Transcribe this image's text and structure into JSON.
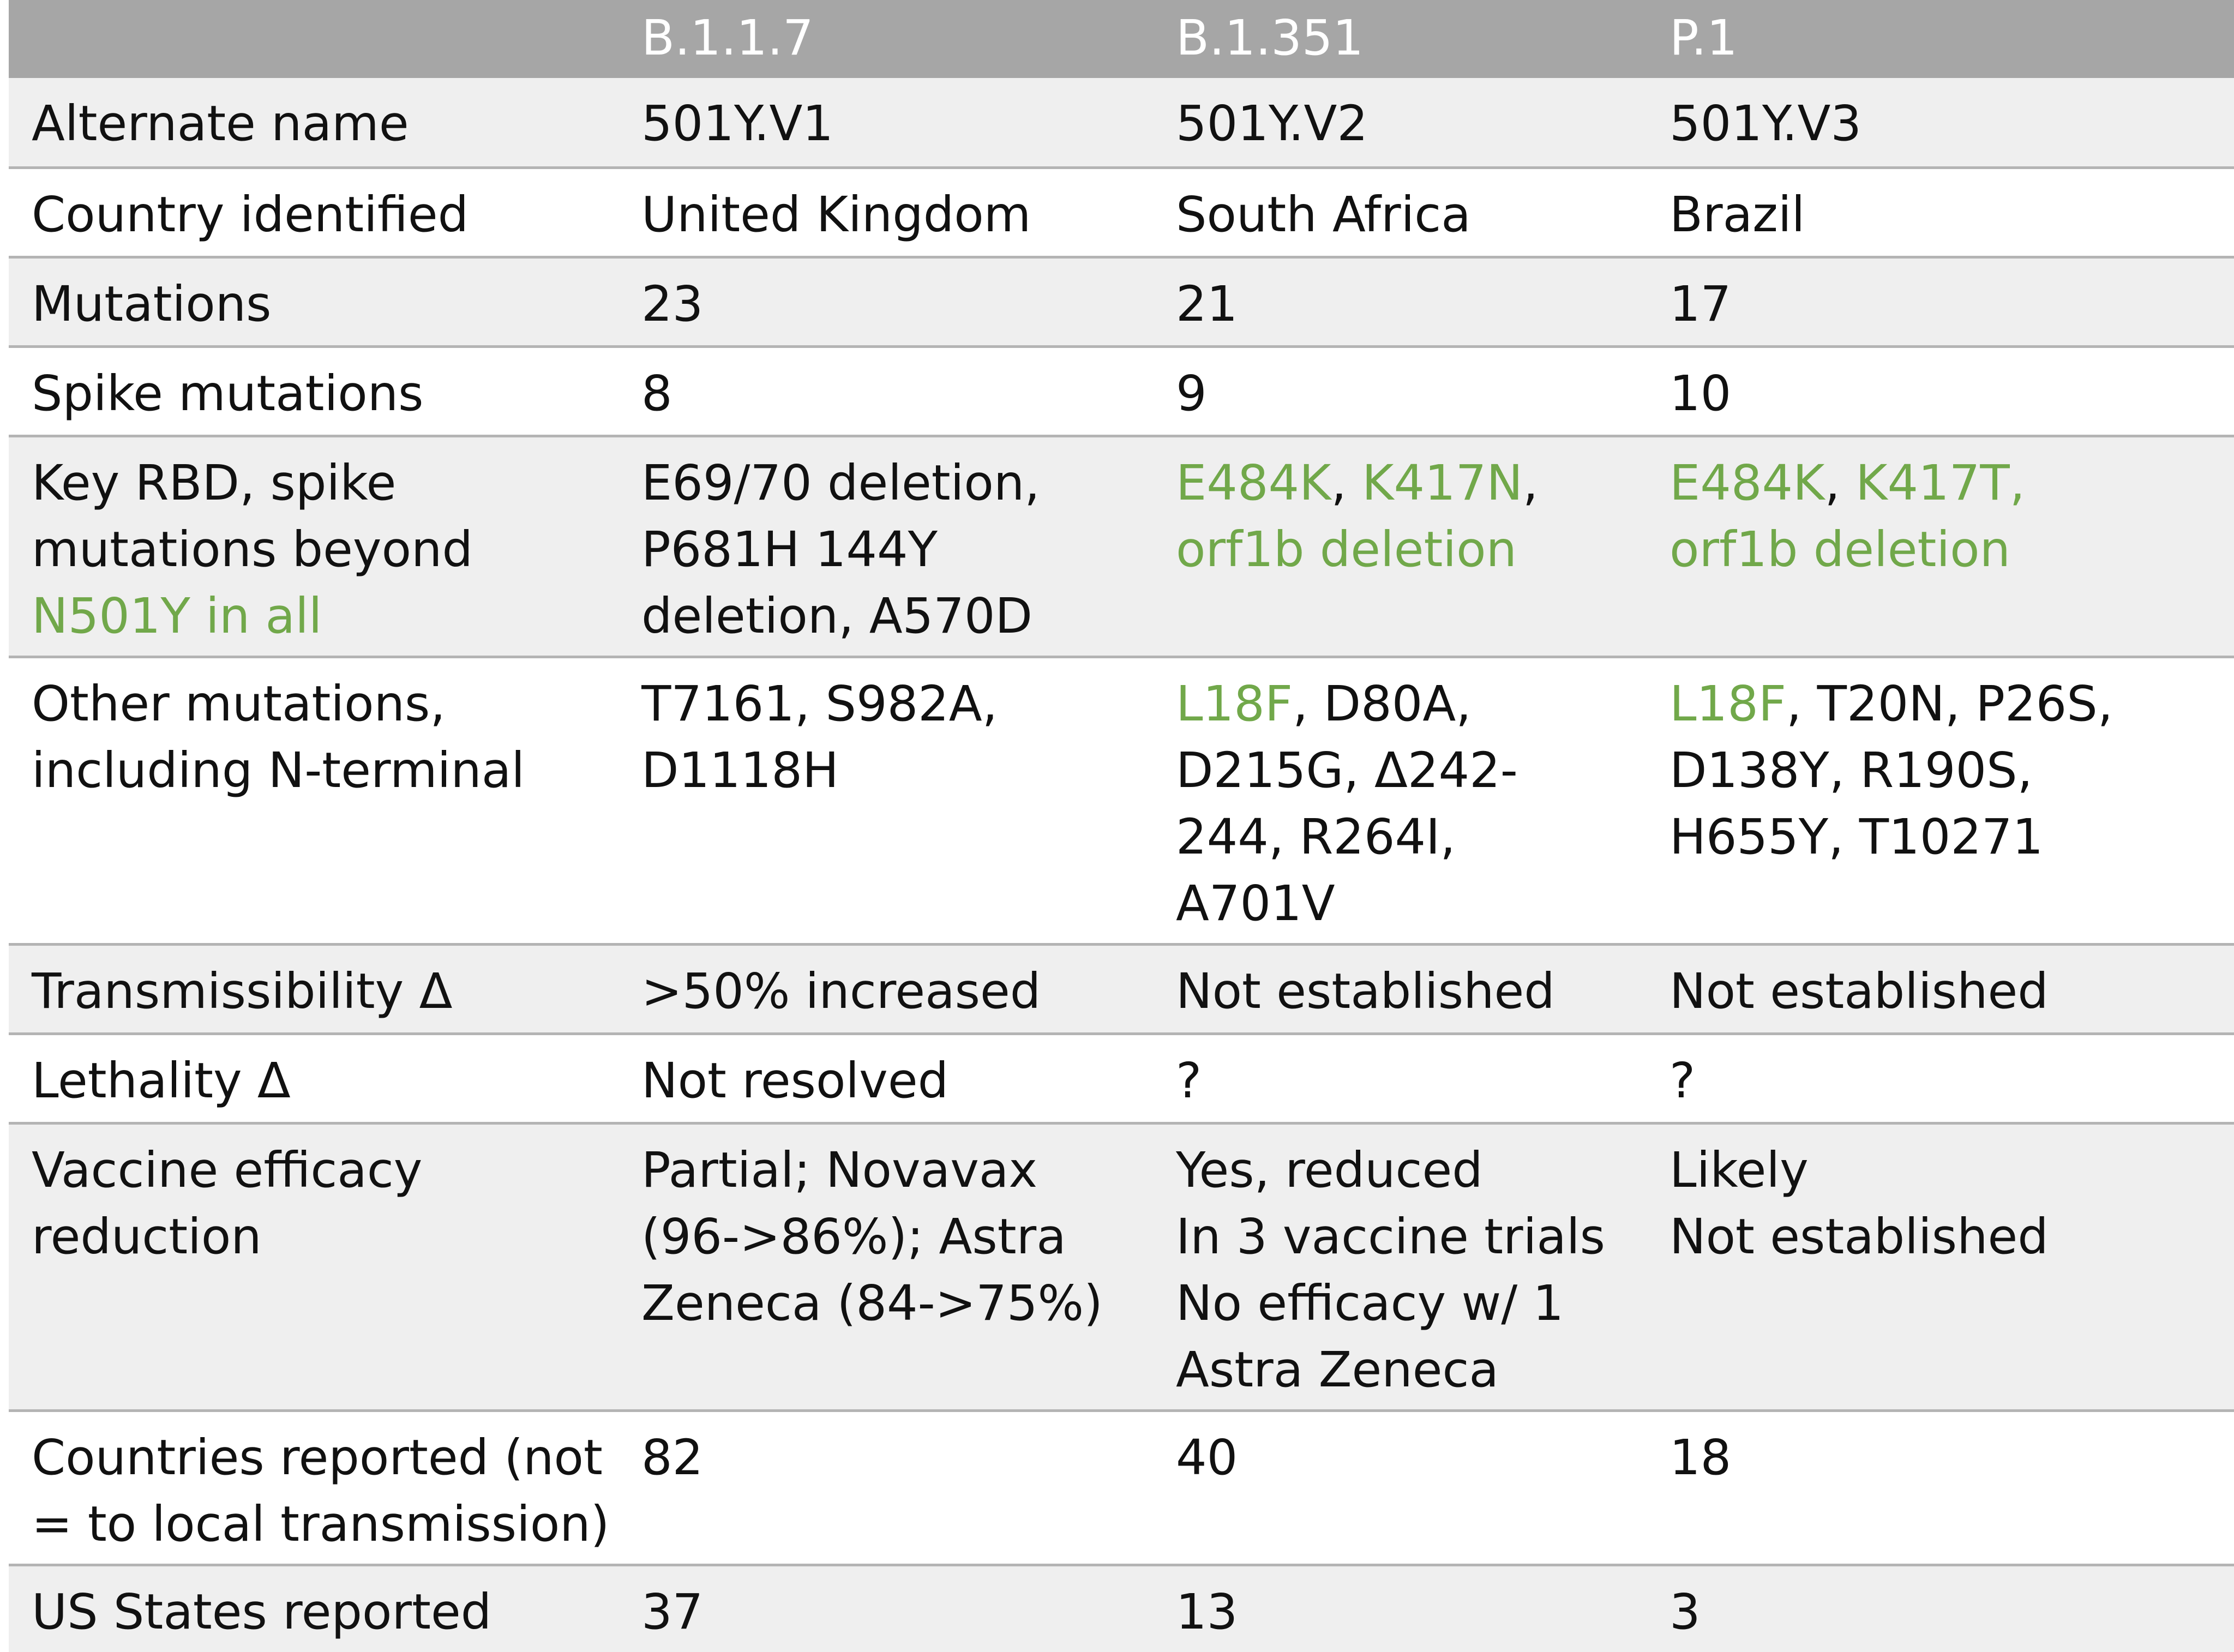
{
  "table": {
    "header": {
      "c0": "",
      "c1": "B.1.1.7",
      "c2": "B.1.351",
      "c3": "P.1"
    },
    "rows": [
      {
        "label": "Alternate name",
        "c1": "501Y.V1",
        "c2": "501Y.V2",
        "c3": "501Y.V3"
      },
      {
        "label": "Country identified",
        "c1": "United Kingdom",
        "c2": "South Africa",
        "c3": "Brazil"
      },
      {
        "label": "Mutations",
        "c1": "23",
        "c2": "21",
        "c3": "17"
      },
      {
        "label": "Spike mutations",
        "c1": "8",
        "c2": "9",
        "c3": "10"
      },
      {
        "label_line1": "Key RBD, spike",
        "label_line2": "mutations beyond",
        "label_line3": "N501Y in all",
        "c1_line1": "E69/70 deletion,",
        "c1_line2": "P681H 144Y",
        "c1_line3": "deletion, A570D",
        "c2_part1": "E484K",
        "c2_sep1": ", ",
        "c2_part2": "K417N",
        "c2_sep2": ",",
        "c2_line2": "orf1b deletion",
        "c3_part1": "E484K",
        "c3_sep1": ", ",
        "c3_part2": "K417T,",
        "c3_line2": "orf1b deletion"
      },
      {
        "label_line1": "Other mutations,",
        "label_line2": "including N-terminal",
        "c1_line1": "T7161, S982A,",
        "c1_line2": "D1118H",
        "c2_part1": "L18F",
        "c2_rest1": ", D80A,",
        "c2_line2": "D215G, Δ242-",
        "c2_line3": "244, R264I,",
        "c2_line4": "A701V",
        "c3_part1": "L18F",
        "c3_rest1": ", T20N, P26S,",
        "c3_line2": "D138Y, R190S,",
        "c3_line3": "H655Y, T10271"
      },
      {
        "label": "Transmissibility Δ",
        "c1": ">50% increased",
        "c2": "Not established",
        "c3": "Not established"
      },
      {
        "label": "Lethality Δ",
        "c1": "Not resolved",
        "c2": "?",
        "c3": "?"
      },
      {
        "label_line1": "Vaccine efficacy",
        "label_line2": "reduction",
        "c1_line1": "Partial; Novavax",
        "c1_line2": "(96->86%); Astra",
        "c1_line3": "Zeneca (84->75%)",
        "c2_line1": "Yes, reduced",
        "c2_line2": "In 3 vaccine trials",
        "c2_line3": "No efficacy w/ 1",
        "c2_line4": "Astra Zeneca",
        "c3_line1": "Likely",
        "c3_line2": "Not established"
      },
      {
        "label_line1": "Countries reported (not",
        "label_line2": "= to local transmission)",
        "c1": "82",
        "c2": "40",
        "c3": "18"
      },
      {
        "label": "US States reported",
        "c1": "37",
        "c2": "13",
        "c3": "3"
      }
    ]
  },
  "colors": {
    "header_bg": "#a6a6a6",
    "header_text": "#ffffff",
    "row_alt_bg": "#efefef",
    "highlight_green": "#71a84a",
    "highlight_red": "#c00000",
    "divider": "#b4b4b4"
  }
}
